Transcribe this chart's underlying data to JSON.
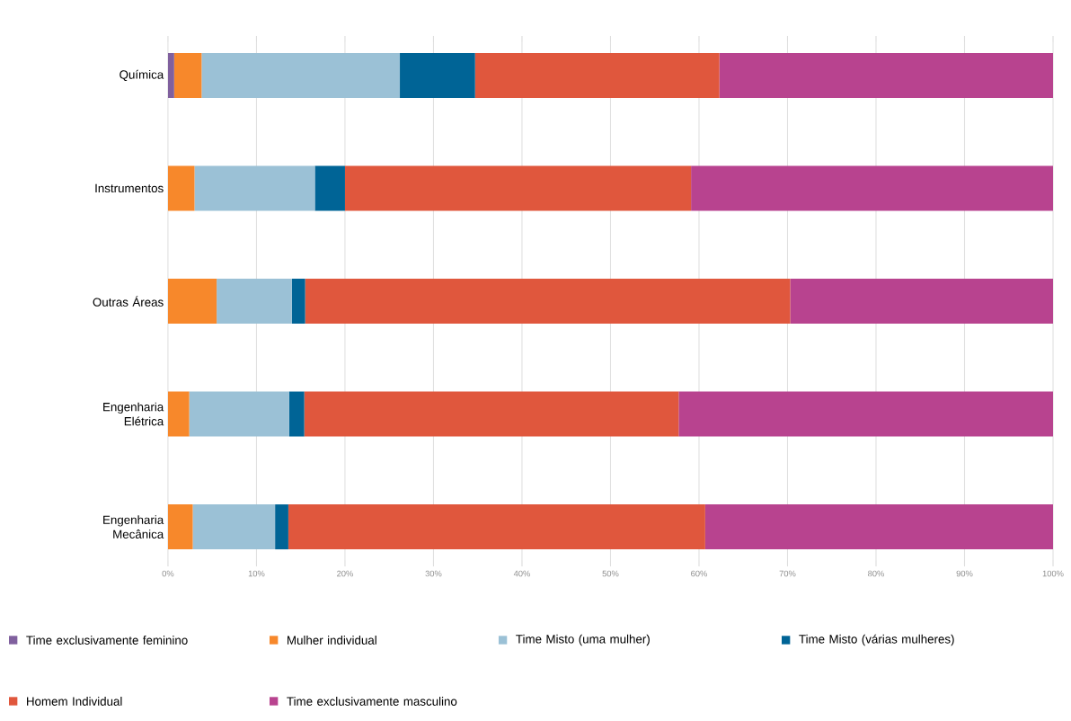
{
  "chart_data": {
    "type": "bar",
    "orientation": "horizontal",
    "stacked": true,
    "grid": "x",
    "legend": "bottom",
    "categories": [
      "Química",
      "Instrumentos",
      "Outras Áreas",
      "Engenharia Elétrica",
      "Engenharia Mecânica"
    ],
    "xlim": [
      0,
      100
    ],
    "xticks": [
      {
        "value": 0,
        "label": "0%"
      },
      {
        "value": 10,
        "label": "10%"
      },
      {
        "value": 20,
        "label": "20%"
      },
      {
        "value": 30,
        "label": "30%"
      },
      {
        "value": 40,
        "label": "40%"
      },
      {
        "value": 50,
        "label": "50%"
      },
      {
        "value": 60,
        "label": "60%"
      },
      {
        "value": 70,
        "label": "70%"
      },
      {
        "value": 80,
        "label": "80%"
      },
      {
        "value": 90,
        "label": "90%"
      },
      {
        "value": 100,
        "label": "100%"
      }
    ],
    "series": [
      {
        "name": "Time exclusivamente feminino",
        "color": "#80609e",
        "values": [
          0.7,
          0,
          0,
          0,
          0
        ]
      },
      {
        "name": "Mulher individual",
        "color": "#f7882b",
        "values": [
          3.1,
          3.0,
          5.5,
          2.4,
          2.8
        ]
      },
      {
        "name": "Time Misto (uma mulher)",
        "color": "#9bc1d6",
        "values": [
          22.4,
          13.6,
          8.5,
          11.3,
          9.3
        ]
      },
      {
        "name": "Time Misto (várias mulheres)",
        "color": "#006496",
        "values": [
          8.5,
          3.4,
          1.5,
          1.7,
          1.5
        ]
      },
      {
        "name": "Homem Individual",
        "color": "#e0573d",
        "values": [
          27.6,
          39.1,
          54.8,
          42.3,
          47.1
        ]
      },
      {
        "name": "Time exclusivamente masculino",
        "color": "#b8438f",
        "values": [
          37.7,
          40.9,
          29.7,
          42.3,
          39.3
        ]
      }
    ]
  }
}
